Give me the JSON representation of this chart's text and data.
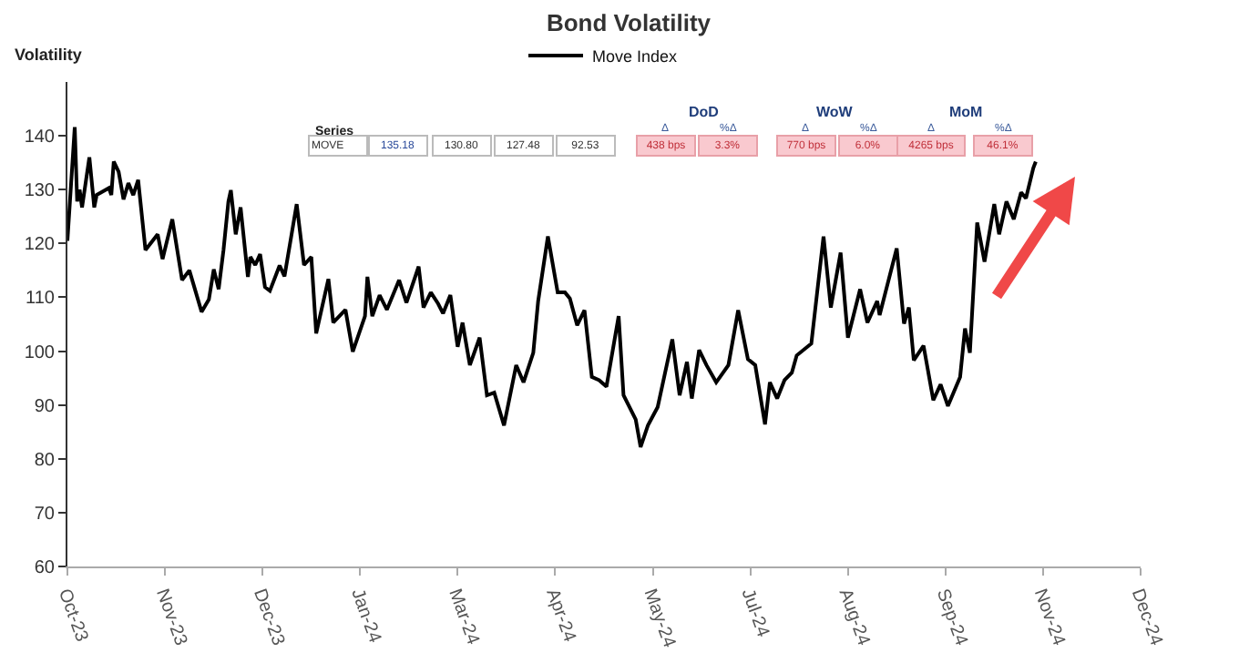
{
  "chart_data": {
    "type": "line",
    "title": "Bond Volatility",
    "ylabel": "Volatility",
    "legend": "top",
    "grid": false,
    "marker": "none",
    "line_style": "solid",
    "x": [
      "2023-10-01",
      "2023-10-04",
      "2023-10-05",
      "2023-10-06",
      "2023-10-07",
      "2023-10-10",
      "2023-10-12",
      "2023-10-13",
      "2023-10-18",
      "2023-10-19",
      "2023-10-20",
      "2023-10-22",
      "2023-10-24",
      "2023-10-26",
      "2023-10-28",
      "2023-10-30",
      "2023-11-02",
      "2023-11-07",
      "2023-11-09",
      "2023-11-13",
      "2023-11-17",
      "2023-11-20",
      "2023-11-25",
      "2023-11-28",
      "2023-11-30",
      "2023-12-02",
      "2023-12-04",
      "2023-12-06",
      "2023-12-07",
      "2023-12-09",
      "2023-12-11",
      "2023-12-14",
      "2023-12-15",
      "2023-12-17",
      "2023-12-19",
      "2023-12-21",
      "2023-12-23",
      "2023-12-27",
      "2023-12-29",
      "2024-01-03",
      "2024-01-06",
      "2024-01-09",
      "2024-01-11",
      "2024-01-16",
      "2024-01-18",
      "2024-01-23",
      "2024-01-26",
      "2024-01-31",
      "2024-02-01",
      "2024-02-03",
      "2024-02-06",
      "2024-02-09",
      "2024-02-14",
      "2024-02-17",
      "2024-02-22",
      "2024-02-24",
      "2024-02-27",
      "2024-03-01",
      "2024-03-03",
      "2024-03-06",
      "2024-03-09",
      "2024-03-11",
      "2024-03-14",
      "2024-03-18",
      "2024-03-21",
      "2024-03-24",
      "2024-03-28",
      "2024-04-02",
      "2024-04-05",
      "2024-04-09",
      "2024-04-11",
      "2024-04-15",
      "2024-04-19",
      "2024-04-22",
      "2024-04-24",
      "2024-04-27",
      "2024-04-30",
      "2024-05-03",
      "2024-05-06",
      "2024-05-09",
      "2024-05-14",
      "2024-05-16",
      "2024-05-21",
      "2024-05-23",
      "2024-05-26",
      "2024-05-30",
      "2024-06-05",
      "2024-06-08",
      "2024-06-11",
      "2024-06-13",
      "2024-06-16",
      "2024-06-19",
      "2024-06-23",
      "2024-06-28",
      "2024-07-02",
      "2024-07-06",
      "2024-07-09",
      "2024-07-13",
      "2024-07-15",
      "2024-07-18",
      "2024-07-21",
      "2024-07-24",
      "2024-07-26",
      "2024-08-01",
      "2024-08-06",
      "2024-08-09",
      "2024-08-13",
      "2024-08-16",
      "2024-08-21",
      "2024-08-24",
      "2024-08-28",
      "2024-08-29",
      "2024-09-05",
      "2024-09-08",
      "2024-09-10",
      "2024-09-12",
      "2024-09-16",
      "2024-09-20",
      "2024-09-23",
      "2024-09-26",
      "2024-10-01",
      "2024-10-03",
      "2024-10-05",
      "2024-10-08",
      "2024-10-11",
      "2024-10-15",
      "2024-10-17",
      "2024-10-20",
      "2024-10-23",
      "2024-10-26",
      "2024-10-28",
      "2024-10-31",
      "2024-11-01"
    ],
    "series": [
      {
        "name": "Move Index",
        "color": "#000000",
        "values": [
          120.5,
          141.6,
          127.8,
          130,
          126.7,
          136,
          126.7,
          129,
          130.3,
          129,
          135.2,
          133.3,
          128.2,
          131.2,
          129,
          131.8,
          118.8,
          121.7,
          117.1,
          124.5,
          113.2,
          115,
          107.3,
          109.6,
          115.2,
          111.5,
          118.8,
          127.8,
          129.9,
          121.7,
          126.7,
          113.8,
          117.5,
          116,
          118,
          111.9,
          111.2,
          115.9,
          113.9,
          127.3,
          116,
          117.5,
          103.3,
          113.4,
          105.3,
          107.7,
          99.9,
          106.5,
          113.8,
          106.5,
          110.4,
          107.7,
          113.2,
          109,
          115.7,
          108.1,
          110.9,
          108.8,
          107,
          110.4,
          100.8,
          105.3,
          97.4,
          102.5,
          91.8,
          92.3,
          86.2,
          97.4,
          94.2,
          99.7,
          109.3,
          121.3,
          110.9,
          110.9,
          109.8,
          104.8,
          107.6,
          95.2,
          94.6,
          93.4,
          106.5,
          91.8,
          87.3,
          82.2,
          86.2,
          89.6,
          102.2,
          91.8,
          98,
          91.2,
          100.2,
          97.4,
          94.2,
          97.4,
          107.6,
          98.5,
          97.4,
          86.4,
          94.2,
          91.2,
          94.6,
          96,
          99.2,
          101.4,
          121.3,
          108.1,
          118.3,
          102.5,
          111.5,
          105.3,
          109.3,
          106.7,
          119.1,
          105.1,
          108.1,
          98.3,
          101,
          90.9,
          93.8,
          89.8,
          95.2,
          104.2,
          99.7,
          123.9,
          116.6,
          127.3,
          121.7,
          127.8,
          124.5,
          129.5,
          128.4,
          134,
          135.2
        ]
      }
    ],
    "xlim": [
      "2023-10-01",
      "2024-12-14"
    ],
    "xticks": [
      {
        "value": "2023-10-01",
        "label": "Oct-23"
      },
      {
        "value": "2023-11-10",
        "label": "Nov-23"
      },
      {
        "value": "2023-12-20",
        "label": "Dec-23"
      },
      {
        "value": "2024-01-29",
        "label": "Jan-24"
      },
      {
        "value": "2024-03-09",
        "label": "Mar-24"
      },
      {
        "value": "2024-04-18",
        "label": "Apr-24"
      },
      {
        "value": "2024-05-28",
        "label": "May-24"
      },
      {
        "value": "2024-07-07",
        "label": "Jul-24"
      },
      {
        "value": "2024-08-16",
        "label": "Aug-24"
      },
      {
        "value": "2024-09-25",
        "label": "Sep-24"
      },
      {
        "value": "2024-11-04",
        "label": "Nov-24"
      },
      {
        "value": "2024-12-14",
        "label": "Dec-24"
      }
    ],
    "ylim": [
      60,
      150
    ],
    "yticks": [
      60,
      70,
      80,
      90,
      100,
      110,
      120,
      130,
      140
    ],
    "annotations": [
      "Series",
      "MOVE",
      "135.18",
      "130.80",
      "127.48",
      "92.53",
      "DoD",
      "Δ",
      "%Δ",
      "438 bps",
      "3.3%",
      "WoW",
      "Δ",
      "%Δ",
      "770 bps",
      "6.0%",
      "MoM",
      "Δ",
      "%Δ",
      "4265 bps",
      "46.1%"
    ]
  }
}
